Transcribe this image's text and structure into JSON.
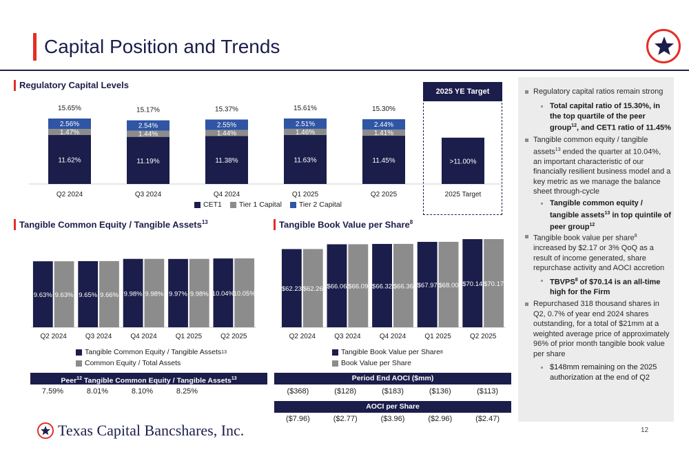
{
  "page": {
    "title": "Capital Position and Trends",
    "page_number": "12",
    "company": "Texas Capital Bancshares, Inc."
  },
  "colors": {
    "navy": "#1b1d4a",
    "gray": "#8c8c8c",
    "blue": "#2f55a4",
    "red": "#e52d27"
  },
  "regulatory": {
    "heading": "Regulatory Capital Levels",
    "target_heading": "2025 YE Target",
    "legend": [
      "CET1",
      "Tier 1 Capital",
      "Tier 2 Capital"
    ]
  },
  "tce": {
    "heading": "Tangible Common Equity / Tangible Assets",
    "heading_sup": "13",
    "legend": [
      "Tangible Common Equity / Tangible Assets",
      "Common Equity / Total Assets"
    ],
    "legend_sup": [
      "13",
      ""
    ],
    "table_head": "Tangible Common Equity / Tangible Assets",
    "table_head_prefix": "Peer",
    "table_head_sup1": "12",
    "table_head_sup2": "13",
    "peer_values": [
      "7.59%",
      "8.01%",
      "8.10%",
      "8.25%"
    ]
  },
  "tbv": {
    "heading": "Tangible Book Value per Share",
    "heading_sup": "8",
    "legend": [
      "Tangible Book Value per Share",
      "Book Value per Share"
    ],
    "legend_sup": [
      "8",
      ""
    ],
    "aoci_head": "Period End AOCI ($mm)",
    "aoci_values": [
      "($368)",
      "($128)",
      "($183)",
      "($136)",
      "($113)"
    ],
    "aoci_ps_head": "AOCI per Share",
    "aoci_ps_values": [
      "($7.96)",
      "($2.77)",
      "($3.96)",
      "($2.96)",
      "($2.47)"
    ]
  },
  "sidebar": {
    "b1": "Regulatory capital ratios remain strong",
    "b1_sub": "Total capital ratio of 15.30%, in the top quartile of the peer group",
    "b1_sub_sup": "12",
    "b1_sub_tail": ", and CET1 ratio of 11.45%",
    "b2_pre": "Tangible common equity / tangible assets",
    "b2_sup": "13",
    "b2_post": " ended the quarter at 10.04%, an important characteristic of our financially resilient business model and a key metric as we manage the balance sheet through-cycle",
    "b2_sub_pre": "Tangible common equity / tangible assets",
    "b2_sub_sup": "13",
    "b2_sub_post": " in top quintile of peer group",
    "b2_sub_sup2": "12",
    "b3_pre": "Tangible book value per share",
    "b3_sup": "8",
    "b3_post": " increased by $2.17 or 3% QoQ as a result of income generated, share repurchase activity and AOCI accretion",
    "b3_sub_pre": "TBVPS",
    "b3_sub_sup": "8",
    "b3_sub_post": " of $70.14 is an all-time high for the Firm",
    "b4": "Repurchased 318 thousand shares in Q2, 0.7% of year end 2024 shares outstanding, for a total of $21mm at a weighted average price of approximately 96% of prior month tangible book value per share",
    "b4_sub": "$148mm remaining on the 2025 authorization at the end of Q2"
  },
  "chart_data": [
    {
      "type": "bar",
      "stacked": true,
      "categories": [
        "Q2 2024",
        "Q3 2024",
        "Q4 2024",
        "Q1 2025",
        "Q2 2025",
        "2025 Target"
      ],
      "series": [
        {
          "name": "CET1",
          "values": [
            11.62,
            11.19,
            11.38,
            11.63,
            11.45,
            11.0
          ],
          "labels": [
            "11.62%",
            "11.19%",
            "11.38%",
            "11.63%",
            "11.45%",
            ">11.00%"
          ]
        },
        {
          "name": "Tier 1 Capital",
          "values": [
            1.47,
            1.44,
            1.44,
            1.46,
            1.41,
            null
          ],
          "labels": [
            "1.47%",
            "1.44%",
            "1.44%",
            "1.46%",
            "1.41%",
            ""
          ]
        },
        {
          "name": "Tier 2 Capital",
          "values": [
            2.56,
            2.54,
            2.55,
            2.51,
            2.44,
            null
          ],
          "labels": [
            "2.56%",
            "2.54%",
            "2.55%",
            "2.51%",
            "2.44%",
            ""
          ]
        }
      ],
      "totals": [
        "15.65%",
        "15.17%",
        "15.37%",
        "15.61%",
        "15.30%",
        ""
      ],
      "legend": "bottom"
    },
    {
      "type": "bar",
      "categories": [
        "Q2 2024",
        "Q3 2024",
        "Q4 2024",
        "Q1 2025",
        "Q2 2025"
      ],
      "series": [
        {
          "name": "Tangible Common Equity / Tangible Assets",
          "values": [
            9.63,
            9.65,
            9.98,
            9.97,
            10.04
          ],
          "labels": [
            "9.63%",
            "9.65%",
            "9.98%",
            "9.97%",
            "10.04%"
          ]
        },
        {
          "name": "Common Equity / Total Assets",
          "values": [
            9.63,
            9.66,
            9.98,
            9.98,
            10.05
          ],
          "labels": [
            "9.63%",
            "9.66%",
            "9.98%",
            "9.98%",
            "10.05%"
          ]
        }
      ],
      "legend": "bottom"
    },
    {
      "type": "bar",
      "categories": [
        "Q2 2024",
        "Q3 2024",
        "Q4 2024",
        "Q1 2025",
        "Q2 2025"
      ],
      "series": [
        {
          "name": "Tangible Book Value per Share",
          "values": [
            62.23,
            66.06,
            66.32,
            67.97,
            70.14
          ],
          "labels": [
            "$62.23",
            "$66.06",
            "$66.32",
            "$67.97",
            "$70.14"
          ]
        },
        {
          "name": "Book Value per Share",
          "values": [
            62.26,
            66.09,
            66.36,
            68.0,
            70.17
          ],
          "labels": [
            "$62.26",
            "$66.09",
            "$66.36",
            "$68.00",
            "$70.17"
          ]
        }
      ],
      "legend": "bottom"
    }
  ]
}
